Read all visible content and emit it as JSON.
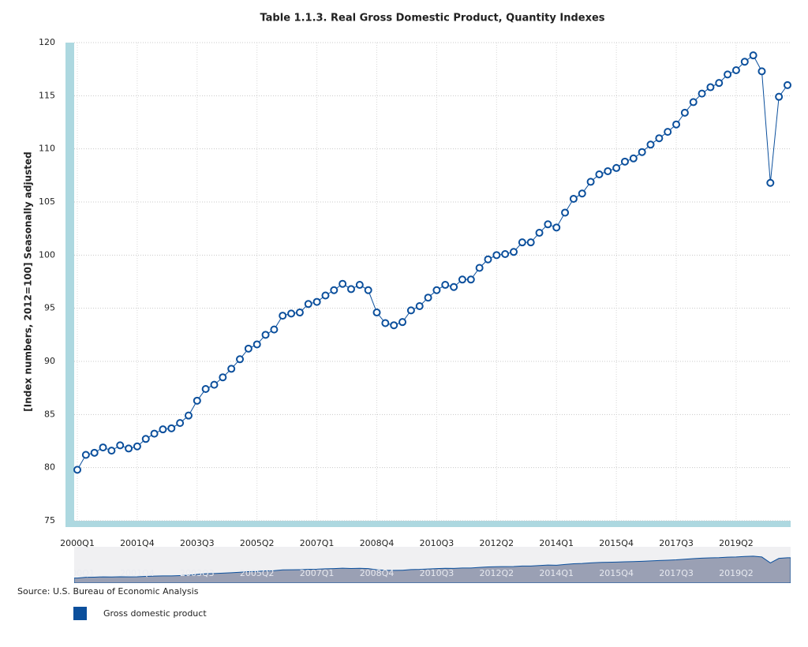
{
  "chart_data": {
    "type": "line",
    "title": "Table 1.1.3. Real Gross Domestic Product, Quantity Indexes",
    "y_label": "[Index numbers, 2012=100] Seasonally adjusted",
    "source": "Source: U.S. Bureau of Economic Analysis",
    "categories": [
      "2000Q1",
      null,
      null,
      null,
      null,
      null,
      null,
      "2001Q4",
      null,
      null,
      null,
      null,
      null,
      null,
      "2003Q3",
      null,
      null,
      null,
      null,
      null,
      null,
      "2005Q2",
      null,
      null,
      null,
      null,
      null,
      null,
      "2007Q1",
      null,
      null,
      null,
      null,
      null,
      null,
      "2008Q4",
      null,
      null,
      null,
      null,
      null,
      null,
      "2010Q3",
      null,
      null,
      null,
      null,
      null,
      null,
      "2012Q2",
      null,
      null,
      null,
      null,
      null,
      null,
      "2014Q1",
      null,
      null,
      null,
      null,
      null,
      null,
      "2015Q4",
      null,
      null,
      null,
      null,
      null,
      null,
      "2017Q3",
      null,
      null,
      null,
      null,
      null,
      null,
      "2019Q2",
      null,
      null,
      null,
      null,
      null,
      null
    ],
    "series": [
      {
        "name": "Gross domestic product",
        "color": "#0b4f9c",
        "values": [
          79.8,
          81.2,
          81.4,
          81.9,
          81.6,
          82.1,
          81.8,
          82.0,
          82.7,
          83.2,
          83.6,
          83.7,
          84.2,
          84.9,
          86.3,
          87.4,
          87.8,
          88.5,
          89.3,
          90.2,
          91.2,
          91.6,
          92.5,
          93.0,
          94.3,
          94.5,
          94.6,
          95.4,
          95.6,
          96.2,
          96.7,
          97.3,
          96.8,
          97.2,
          96.7,
          94.6,
          93.6,
          93.4,
          93.7,
          94.8,
          95.2,
          96.0,
          96.7,
          97.2,
          97.0,
          97.7,
          97.7,
          98.8,
          99.6,
          100.0,
          100.1,
          100.3,
          101.2,
          101.2,
          102.1,
          102.9,
          102.6,
          104.0,
          105.3,
          105.8,
          106.9,
          107.6,
          107.9,
          108.2,
          108.8,
          109.1,
          109.7,
          110.4,
          111.0,
          111.6,
          112.3,
          113.4,
          114.4,
          115.2,
          115.8,
          116.2,
          117.0,
          117.4,
          118.2,
          118.8,
          117.3,
          106.8,
          114.9,
          116.0
        ]
      }
    ],
    "ylim": [
      75,
      120
    ],
    "yticks": [
      75,
      80,
      85,
      90,
      95,
      100,
      105,
      110,
      115,
      120
    ],
    "grid": true
  }
}
